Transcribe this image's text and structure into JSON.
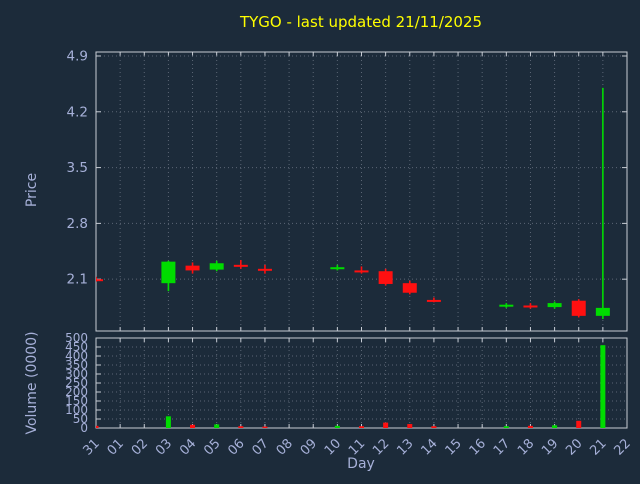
{
  "chart": {
    "title": "TYGO - last updated 21/11/2025",
    "xlabel": "Day",
    "ylabel_price": "Price",
    "ylabel_volume": "Volume (0000)"
  },
  "chart_data": {
    "type": "candlestick",
    "title": "TYGO - last updated 21/11/2025",
    "xlabel": "Day",
    "ylabel_price": "Price",
    "ylabel_volume": "Volume (0000)",
    "categories": [
      "31",
      "01",
      "02",
      "03",
      "04",
      "05",
      "06",
      "07",
      "08",
      "09",
      "10",
      "11",
      "12",
      "13",
      "14",
      "15",
      "16",
      "17",
      "18",
      "19",
      "20",
      "21",
      "22"
    ],
    "price_axis": {
      "ticks": [
        2.1,
        2.8,
        3.5,
        4.2,
        4.9
      ],
      "range": [
        1.45,
        4.95
      ],
      "grid": true
    },
    "volume_axis": {
      "ticks": [
        0,
        50,
        100,
        150,
        200,
        250,
        300,
        350,
        400,
        450,
        500
      ],
      "range": [
        0,
        500
      ],
      "grid": true
    },
    "candles": [
      {
        "day": "31",
        "open": 2.1,
        "high": 2.13,
        "low": 2.07,
        "close": 2.1,
        "dir": "down"
      },
      {
        "day": "03",
        "open": 2.05,
        "high": 2.33,
        "low": 1.95,
        "close": 2.32,
        "dir": "up"
      },
      {
        "day": "04",
        "open": 2.27,
        "high": 2.31,
        "low": 2.17,
        "close": 2.21,
        "dir": "down"
      },
      {
        "day": "05",
        "open": 2.22,
        "high": 2.33,
        "low": 2.2,
        "close": 2.3,
        "dir": "up"
      },
      {
        "day": "06",
        "open": 2.28,
        "high": 2.34,
        "low": 2.23,
        "close": 2.26,
        "dir": "down"
      },
      {
        "day": "07",
        "open": 2.23,
        "high": 2.28,
        "low": 2.17,
        "close": 2.22,
        "dir": "down"
      },
      {
        "day": "10",
        "open": 2.23,
        "high": 2.28,
        "low": 2.21,
        "close": 2.25,
        "dir": "up"
      },
      {
        "day": "11",
        "open": 2.21,
        "high": 2.26,
        "low": 2.17,
        "close": 2.19,
        "dir": "down"
      },
      {
        "day": "12",
        "open": 2.2,
        "high": 2.23,
        "low": 2.02,
        "close": 2.04,
        "dir": "down"
      },
      {
        "day": "13",
        "open": 2.05,
        "high": 2.08,
        "low": 1.91,
        "close": 1.93,
        "dir": "down"
      },
      {
        "day": "14",
        "open": 1.84,
        "high": 1.87,
        "low": 1.81,
        "close": 1.83,
        "dir": "down"
      },
      {
        "day": "17",
        "open": 1.76,
        "high": 1.8,
        "low": 1.74,
        "close": 1.78,
        "dir": "up"
      },
      {
        "day": "18",
        "open": 1.77,
        "high": 1.8,
        "low": 1.73,
        "close": 1.75,
        "dir": "down"
      },
      {
        "day": "19",
        "open": 1.75,
        "high": 1.82,
        "low": 1.73,
        "close": 1.8,
        "dir": "up"
      },
      {
        "day": "20",
        "open": 1.83,
        "high": 1.85,
        "low": 1.62,
        "close": 1.64,
        "dir": "down"
      },
      {
        "day": "21",
        "open": 1.64,
        "high": 4.5,
        "low": 1.6,
        "close": 1.74,
        "dir": "up"
      }
    ],
    "volumes": [
      {
        "day": "31",
        "value": 12,
        "dir": "down"
      },
      {
        "day": "03",
        "value": 65,
        "dir": "up"
      },
      {
        "day": "04",
        "value": 18,
        "dir": "down"
      },
      {
        "day": "05",
        "value": 20,
        "dir": "up"
      },
      {
        "day": "06",
        "value": 10,
        "dir": "down"
      },
      {
        "day": "07",
        "value": 8,
        "dir": "down"
      },
      {
        "day": "10",
        "value": 12,
        "dir": "up"
      },
      {
        "day": "11",
        "value": 10,
        "dir": "down"
      },
      {
        "day": "12",
        "value": 30,
        "dir": "down"
      },
      {
        "day": "13",
        "value": 22,
        "dir": "down"
      },
      {
        "day": "14",
        "value": 10,
        "dir": "down"
      },
      {
        "day": "17",
        "value": 10,
        "dir": "up"
      },
      {
        "day": "18",
        "value": 12,
        "dir": "down"
      },
      {
        "day": "19",
        "value": 15,
        "dir": "up"
      },
      {
        "day": "20",
        "value": 40,
        "dir": "down"
      },
      {
        "day": "21",
        "value": 460,
        "dir": "up"
      }
    ],
    "colors": {
      "up": "#00dc00",
      "down": "#ff1010",
      "background": "#1c2b3a",
      "grid": "#5b6675",
      "border": "#c7ccd4",
      "title": "#ffff00",
      "label": "#a6b0d8"
    }
  }
}
